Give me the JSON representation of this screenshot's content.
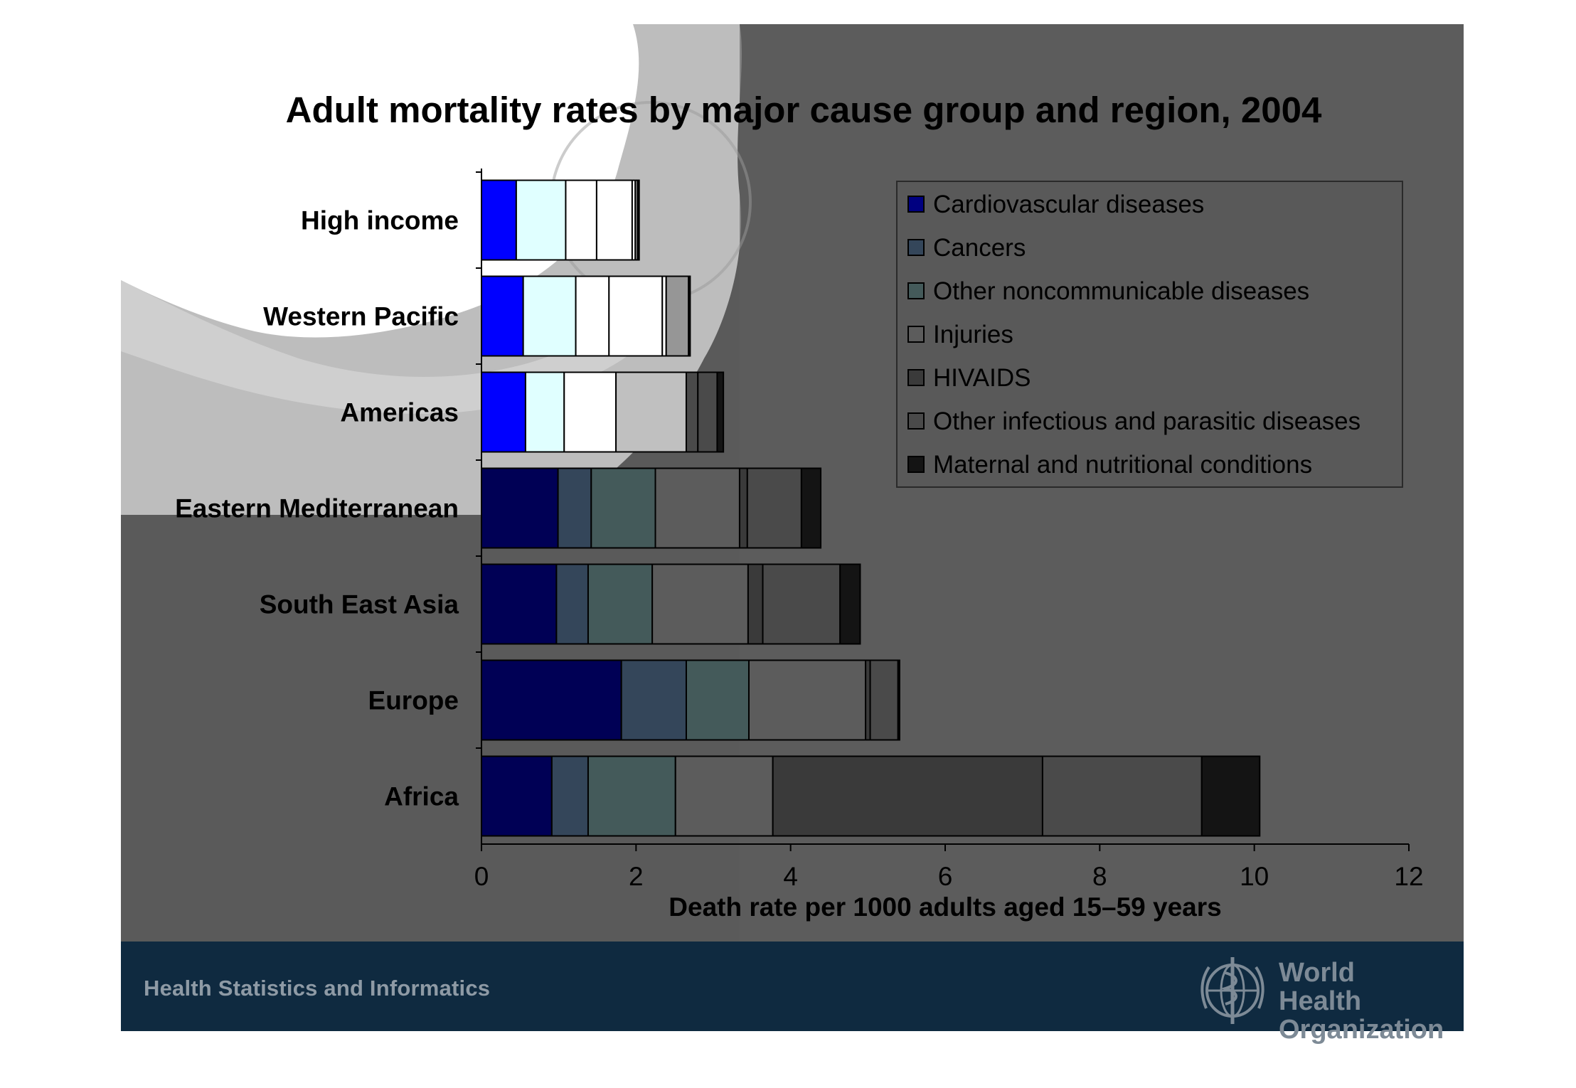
{
  "footer": {
    "left_text": "Health Statistics and Informatics",
    "org_line1": "World Health",
    "org_line2": "Organization"
  },
  "chart_data": {
    "type": "bar",
    "orientation": "horizontal",
    "stacked": true,
    "title": "Adult mortality rates by major cause group and region, 2004",
    "xlabel": "Death rate per 1000 adults aged 15–59 years",
    "ylabel": "",
    "xlim": [
      0,
      12
    ],
    "xticks": [
      0,
      2,
      4,
      6,
      8,
      10,
      12
    ],
    "legend_position": "top-right",
    "grid": false,
    "categories": [
      "High income",
      "Western Pacific",
      "Americas",
      "Eastern Mediterranean",
      "South East Asia",
      "Europe",
      "Africa"
    ],
    "series": [
      {
        "name": "Cardiovascular diseases",
        "color": "#000055",
        "values": [
          0.45,
          0.54,
          0.57,
          0.99,
          0.97,
          1.81,
          0.91
        ]
      },
      {
        "name": "Cancers",
        "color": "#34465a",
        "values": [
          0.64,
          0.68,
          0.5,
          0.43,
          0.41,
          0.84,
          0.47
        ]
      },
      {
        "name": "Other noncommunicable diseases",
        "color": "#445a5a",
        "values": [
          0.4,
          0.43,
          0.67,
          0.83,
          0.83,
          0.81,
          1.13
        ]
      },
      {
        "name": "Injuries",
        "color": "#5c5c5c",
        "values": [
          0.46,
          0.69,
          0.91,
          1.09,
          1.24,
          1.51,
          1.26
        ]
      },
      {
        "name": "HIVAIDS",
        "color": "#3a3a3a",
        "values": [
          0.04,
          0.05,
          0.15,
          0.1,
          0.19,
          0.06,
          3.49
        ]
      },
      {
        "name": "Other infectious and parasitic diseases",
        "color": "#4a4a4a",
        "values": [
          0.03,
          0.29,
          0.25,
          0.7,
          1.0,
          0.36,
          2.06
        ]
      },
      {
        "name": "Maternal and nutritional conditions",
        "color": "#141414",
        "values": [
          0.02,
          0.02,
          0.08,
          0.25,
          0.26,
          0.02,
          0.75
        ]
      }
    ]
  }
}
